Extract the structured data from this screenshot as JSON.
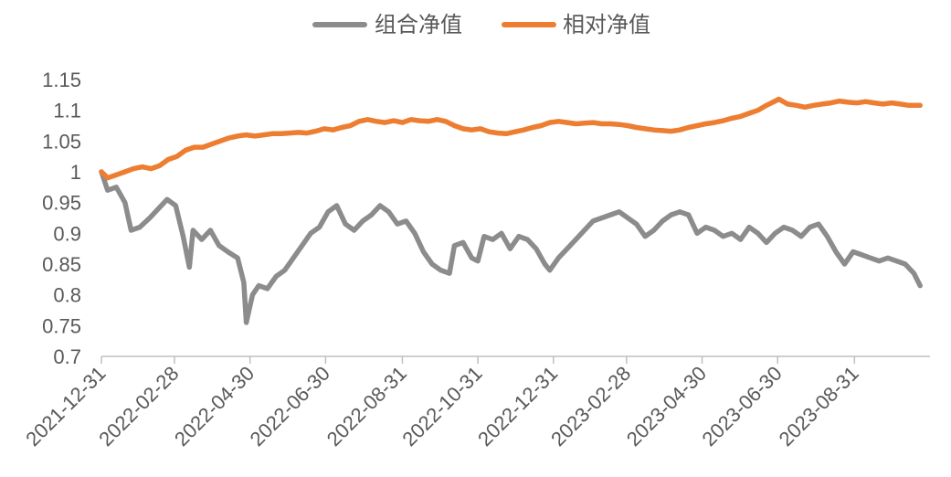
{
  "chart_data": {
    "type": "line",
    "title": "",
    "xlabel": "",
    "ylabel": "",
    "ylim": [
      0.7,
      1.15
    ],
    "y_ticks": [
      "0.7",
      "0.75",
      "0.8",
      "0.85",
      "0.9",
      "0.95",
      "1",
      "1.05",
      "1.1",
      "1.15"
    ],
    "y_tick_values": [
      0.7,
      0.75,
      0.8,
      0.85,
      0.9,
      0.95,
      1.0,
      1.05,
      1.1,
      1.15
    ],
    "x_range": [
      "2021-12-31",
      "2023-10-31"
    ],
    "x_ticks": [
      "2021-12-31",
      "2022-02-28",
      "2022-04-30",
      "2022-06-30",
      "2022-08-31",
      "2022-10-31",
      "2022-12-31",
      "2023-02-28",
      "2023-04-30",
      "2023-06-30",
      "2023-08-31"
    ],
    "grid": false,
    "legend_position": "top-center",
    "series": [
      {
        "name": "组合净值",
        "color": "#8c8c8c",
        "points": [
          [
            "2021-12-31",
            1.0
          ],
          [
            "2022-01-05",
            0.97
          ],
          [
            "2022-01-12",
            0.975
          ],
          [
            "2022-01-19",
            0.95
          ],
          [
            "2022-01-24",
            0.905
          ],
          [
            "2022-01-31",
            0.91
          ],
          [
            "2022-02-08",
            0.925
          ],
          [
            "2022-02-15",
            0.94
          ],
          [
            "2022-02-22",
            0.955
          ],
          [
            "2022-03-01",
            0.945
          ],
          [
            "2022-03-07",
            0.895
          ],
          [
            "2022-03-12",
            0.845
          ],
          [
            "2022-03-15",
            0.905
          ],
          [
            "2022-03-22",
            0.89
          ],
          [
            "2022-03-29",
            0.905
          ],
          [
            "2022-04-05",
            0.88
          ],
          [
            "2022-04-12",
            0.87
          ],
          [
            "2022-04-20",
            0.86
          ],
          [
            "2022-04-25",
            0.82
          ],
          [
            "2022-04-27",
            0.755
          ],
          [
            "2022-05-02",
            0.8
          ],
          [
            "2022-05-07",
            0.815
          ],
          [
            "2022-05-14",
            0.81
          ],
          [
            "2022-05-21",
            0.83
          ],
          [
            "2022-05-28",
            0.84
          ],
          [
            "2022-06-04",
            0.86
          ],
          [
            "2022-06-11",
            0.88
          ],
          [
            "2022-06-18",
            0.9
          ],
          [
            "2022-06-25",
            0.91
          ],
          [
            "2022-07-02",
            0.935
          ],
          [
            "2022-07-09",
            0.945
          ],
          [
            "2022-07-16",
            0.915
          ],
          [
            "2022-07-23",
            0.905
          ],
          [
            "2022-07-30",
            0.92
          ],
          [
            "2022-08-06",
            0.93
          ],
          [
            "2022-08-13",
            0.945
          ],
          [
            "2022-08-20",
            0.935
          ],
          [
            "2022-08-27",
            0.915
          ],
          [
            "2022-09-03",
            0.92
          ],
          [
            "2022-09-10",
            0.9
          ],
          [
            "2022-09-17",
            0.87
          ],
          [
            "2022-09-24",
            0.85
          ],
          [
            "2022-10-01",
            0.84
          ],
          [
            "2022-10-08",
            0.835
          ],
          [
            "2022-10-12",
            0.88
          ],
          [
            "2022-10-19",
            0.885
          ],
          [
            "2022-10-26",
            0.86
          ],
          [
            "2022-10-31",
            0.855
          ],
          [
            "2022-11-05",
            0.895
          ],
          [
            "2022-11-12",
            0.89
          ],
          [
            "2022-11-19",
            0.9
          ],
          [
            "2022-11-26",
            0.875
          ],
          [
            "2022-12-03",
            0.895
          ],
          [
            "2022-12-10",
            0.89
          ],
          [
            "2022-12-17",
            0.875
          ],
          [
            "2022-12-24",
            0.85
          ],
          [
            "2022-12-28",
            0.84
          ],
          [
            "2023-01-04",
            0.86
          ],
          [
            "2023-01-11",
            0.875
          ],
          [
            "2023-01-18",
            0.89
          ],
          [
            "2023-01-25",
            0.905
          ],
          [
            "2023-02-01",
            0.92
          ],
          [
            "2023-02-08",
            0.925
          ],
          [
            "2023-02-15",
            0.93
          ],
          [
            "2023-02-22",
            0.935
          ],
          [
            "2023-03-01",
            0.925
          ],
          [
            "2023-03-08",
            0.915
          ],
          [
            "2023-03-15",
            0.895
          ],
          [
            "2023-03-22",
            0.905
          ],
          [
            "2023-03-29",
            0.92
          ],
          [
            "2023-04-05",
            0.93
          ],
          [
            "2023-04-12",
            0.935
          ],
          [
            "2023-04-19",
            0.93
          ],
          [
            "2023-04-26",
            0.9
          ],
          [
            "2023-05-03",
            0.91
          ],
          [
            "2023-05-10",
            0.905
          ],
          [
            "2023-05-17",
            0.895
          ],
          [
            "2023-05-24",
            0.9
          ],
          [
            "2023-05-31",
            0.89
          ],
          [
            "2023-06-07",
            0.91
          ],
          [
            "2023-06-14",
            0.9
          ],
          [
            "2023-06-21",
            0.885
          ],
          [
            "2023-06-28",
            0.9
          ],
          [
            "2023-07-05",
            0.91
          ],
          [
            "2023-07-12",
            0.905
          ],
          [
            "2023-07-19",
            0.895
          ],
          [
            "2023-07-26",
            0.91
          ],
          [
            "2023-08-02",
            0.915
          ],
          [
            "2023-08-09",
            0.895
          ],
          [
            "2023-08-16",
            0.87
          ],
          [
            "2023-08-23",
            0.85
          ],
          [
            "2023-08-30",
            0.87
          ],
          [
            "2023-09-06",
            0.865
          ],
          [
            "2023-09-13",
            0.86
          ],
          [
            "2023-09-20",
            0.855
          ],
          [
            "2023-09-27",
            0.86
          ],
          [
            "2023-10-04",
            0.855
          ],
          [
            "2023-10-11",
            0.85
          ],
          [
            "2023-10-18",
            0.835
          ],
          [
            "2023-10-23",
            0.815
          ]
        ]
      },
      {
        "name": "相对净值",
        "color": "#ed7d31",
        "points": [
          [
            "2021-12-31",
            1.0
          ],
          [
            "2022-01-05",
            0.99
          ],
          [
            "2022-01-12",
            0.995
          ],
          [
            "2022-01-19",
            1.0
          ],
          [
            "2022-01-26",
            1.005
          ],
          [
            "2022-02-02",
            1.008
          ],
          [
            "2022-02-09",
            1.005
          ],
          [
            "2022-02-16",
            1.01
          ],
          [
            "2022-02-23",
            1.02
          ],
          [
            "2022-03-02",
            1.025
          ],
          [
            "2022-03-09",
            1.035
          ],
          [
            "2022-03-16",
            1.04
          ],
          [
            "2022-03-23",
            1.04
          ],
          [
            "2022-03-30",
            1.045
          ],
          [
            "2022-04-06",
            1.05
          ],
          [
            "2022-04-13",
            1.055
          ],
          [
            "2022-04-20",
            1.058
          ],
          [
            "2022-04-27",
            1.06
          ],
          [
            "2022-05-04",
            1.058
          ],
          [
            "2022-05-11",
            1.06
          ],
          [
            "2022-05-18",
            1.062
          ],
          [
            "2022-05-25",
            1.062
          ],
          [
            "2022-06-01",
            1.063
          ],
          [
            "2022-06-08",
            1.064
          ],
          [
            "2022-06-15",
            1.063
          ],
          [
            "2022-06-22",
            1.066
          ],
          [
            "2022-06-29",
            1.07
          ],
          [
            "2022-07-06",
            1.068
          ],
          [
            "2022-07-13",
            1.072
          ],
          [
            "2022-07-20",
            1.075
          ],
          [
            "2022-07-27",
            1.082
          ],
          [
            "2022-08-03",
            1.085
          ],
          [
            "2022-08-10",
            1.082
          ],
          [
            "2022-08-17",
            1.08
          ],
          [
            "2022-08-24",
            1.083
          ],
          [
            "2022-08-31",
            1.08
          ],
          [
            "2022-09-07",
            1.085
          ],
          [
            "2022-09-14",
            1.083
          ],
          [
            "2022-09-21",
            1.082
          ],
          [
            "2022-09-28",
            1.085
          ],
          [
            "2022-10-05",
            1.082
          ],
          [
            "2022-10-12",
            1.075
          ],
          [
            "2022-10-19",
            1.07
          ],
          [
            "2022-10-26",
            1.068
          ],
          [
            "2022-11-02",
            1.07
          ],
          [
            "2022-11-09",
            1.065
          ],
          [
            "2022-11-16",
            1.063
          ],
          [
            "2022-11-23",
            1.062
          ],
          [
            "2022-11-30",
            1.065
          ],
          [
            "2022-12-07",
            1.068
          ],
          [
            "2022-12-14",
            1.072
          ],
          [
            "2022-12-21",
            1.075
          ],
          [
            "2022-12-28",
            1.08
          ],
          [
            "2023-01-04",
            1.082
          ],
          [
            "2023-01-11",
            1.08
          ],
          [
            "2023-01-18",
            1.078
          ],
          [
            "2023-01-25",
            1.079
          ],
          [
            "2023-02-01",
            1.08
          ],
          [
            "2023-02-08",
            1.078
          ],
          [
            "2023-02-15",
            1.078
          ],
          [
            "2023-02-22",
            1.077
          ],
          [
            "2023-03-01",
            1.075
          ],
          [
            "2023-03-08",
            1.072
          ],
          [
            "2023-03-15",
            1.07
          ],
          [
            "2023-03-22",
            1.068
          ],
          [
            "2023-03-29",
            1.067
          ],
          [
            "2023-04-05",
            1.066
          ],
          [
            "2023-04-12",
            1.068
          ],
          [
            "2023-04-19",
            1.072
          ],
          [
            "2023-04-26",
            1.075
          ],
          [
            "2023-05-03",
            1.078
          ],
          [
            "2023-05-10",
            1.08
          ],
          [
            "2023-05-17",
            1.083
          ],
          [
            "2023-05-24",
            1.087
          ],
          [
            "2023-05-31",
            1.09
          ],
          [
            "2023-06-07",
            1.095
          ],
          [
            "2023-06-14",
            1.1
          ],
          [
            "2023-06-21",
            1.108
          ],
          [
            "2023-06-28",
            1.115
          ],
          [
            "2023-07-01",
            1.118
          ],
          [
            "2023-07-08",
            1.11
          ],
          [
            "2023-07-15",
            1.108
          ],
          [
            "2023-07-22",
            1.105
          ],
          [
            "2023-07-29",
            1.108
          ],
          [
            "2023-08-05",
            1.11
          ],
          [
            "2023-08-12",
            1.112
          ],
          [
            "2023-08-19",
            1.115
          ],
          [
            "2023-08-26",
            1.113
          ],
          [
            "2023-09-02",
            1.112
          ],
          [
            "2023-09-09",
            1.114
          ],
          [
            "2023-09-16",
            1.112
          ],
          [
            "2023-09-23",
            1.11
          ],
          [
            "2023-09-30",
            1.112
          ],
          [
            "2023-10-07",
            1.11
          ],
          [
            "2023-10-14",
            1.108
          ],
          [
            "2023-10-23",
            1.108
          ]
        ]
      }
    ]
  }
}
